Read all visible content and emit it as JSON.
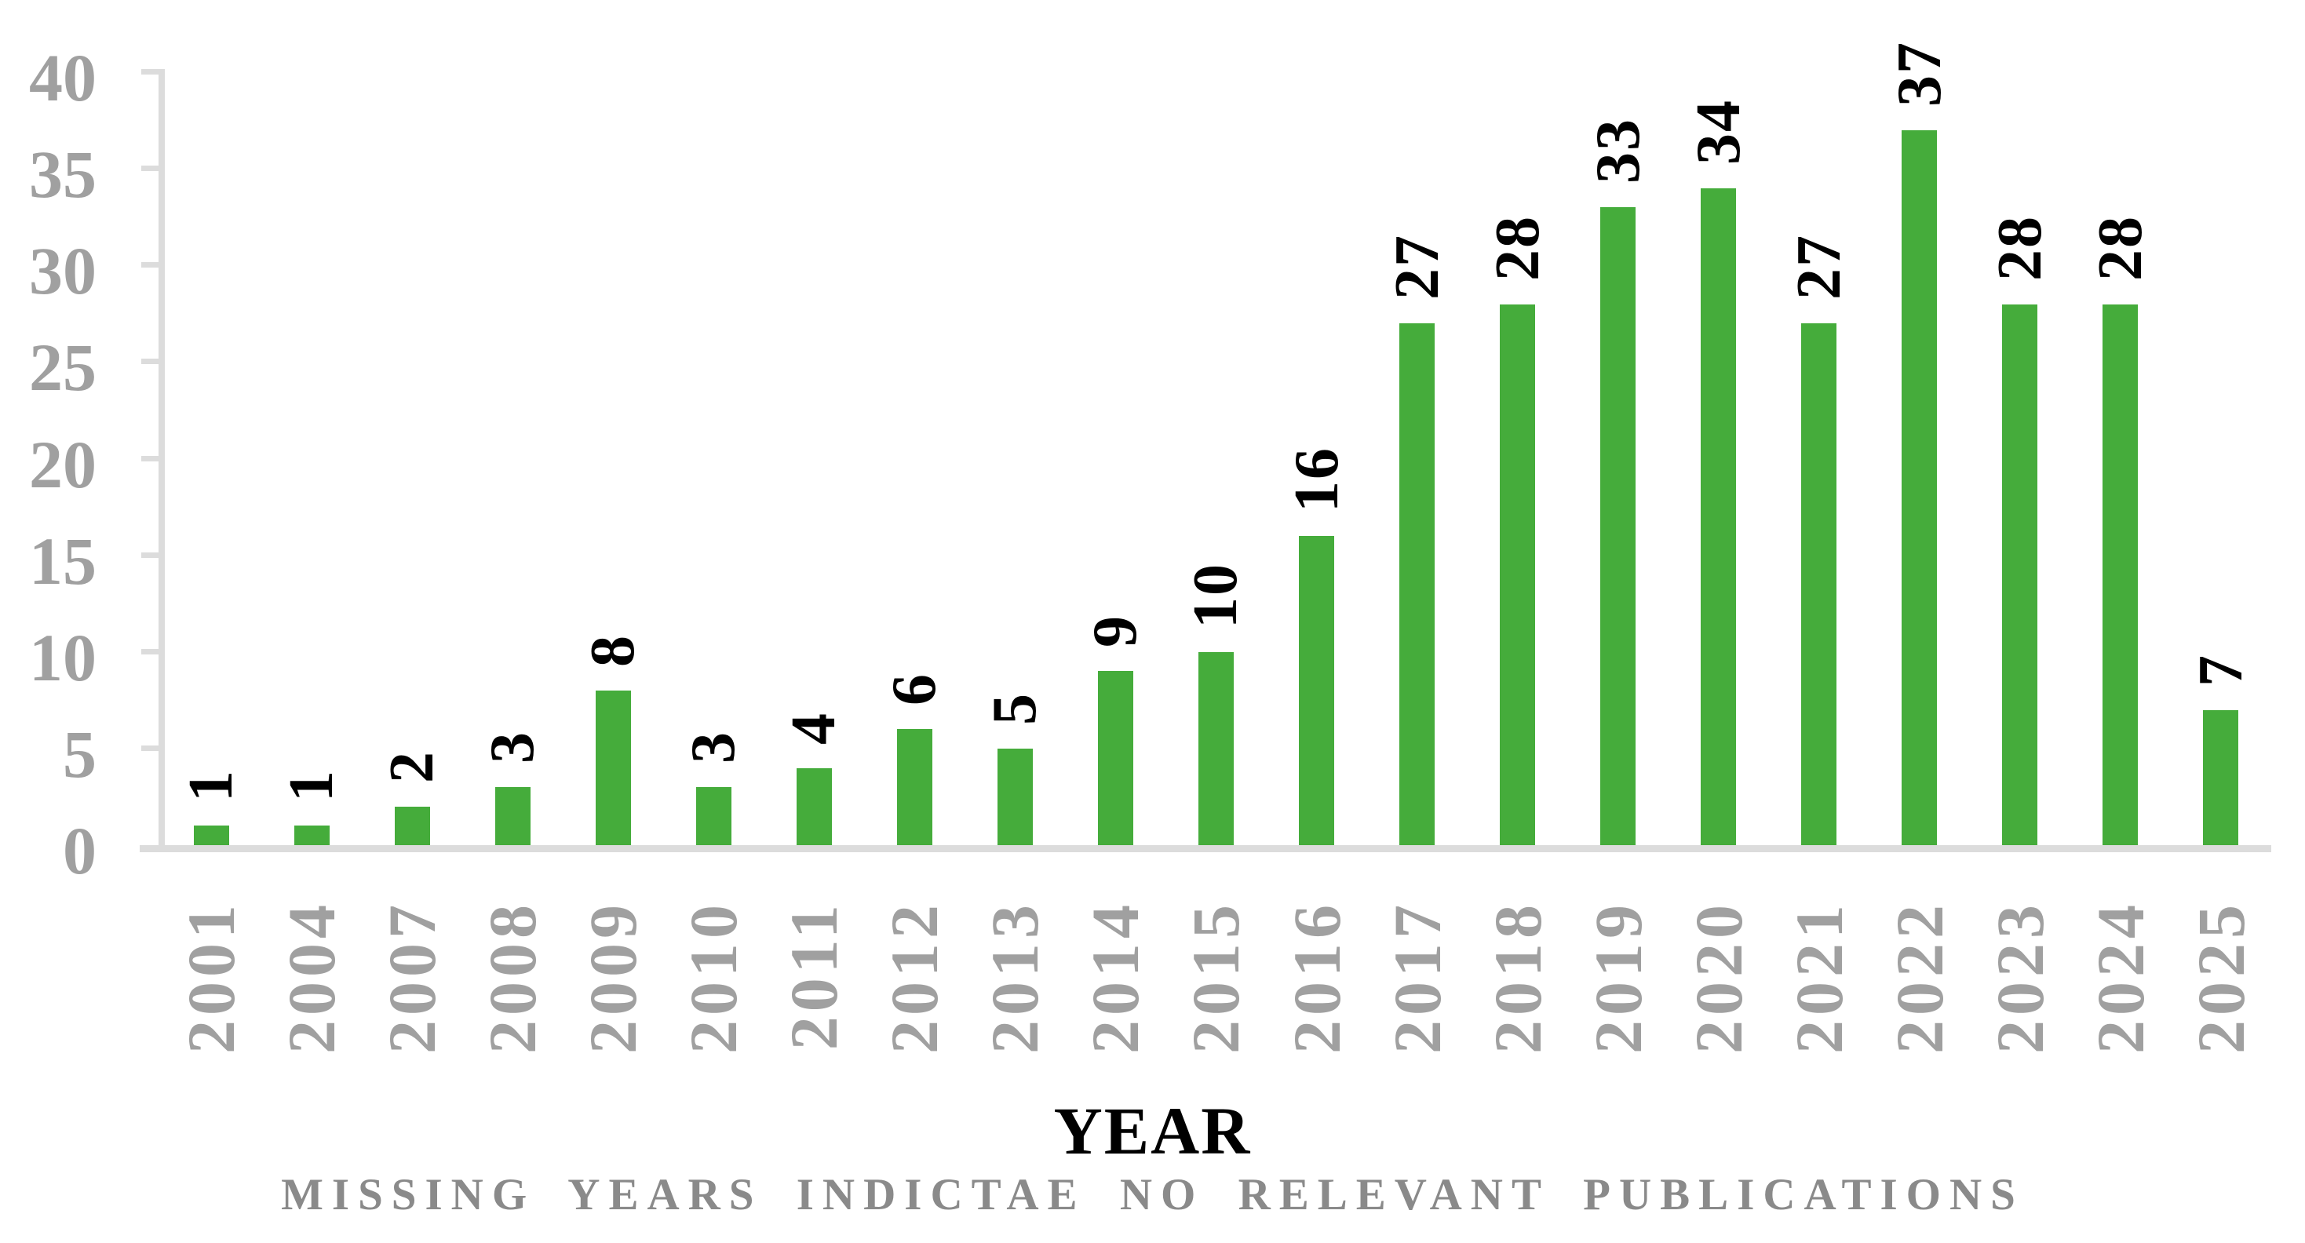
{
  "chart_data": {
    "type": "bar",
    "title": "",
    "xlabel": "YEAR",
    "ylabel": "",
    "footnote": "MISSING YEARS INDICTAE NO RELEVANT PUBLICATIONS",
    "categories": [
      "2001",
      "2004",
      "2007",
      "2008",
      "2009",
      "2010",
      "2011",
      "2012",
      "2013",
      "2014",
      "2015",
      "2016",
      "2017",
      "2018",
      "2019",
      "2020",
      "2021",
      "2022",
      "2023",
      "2024",
      "2025"
    ],
    "values": [
      1,
      1,
      2,
      3,
      8,
      3,
      4,
      6,
      5,
      9,
      10,
      16,
      27,
      28,
      33,
      34,
      27,
      37,
      28,
      28,
      7
    ],
    "ylim": [
      0,
      40
    ],
    "yticks": [
      0,
      5,
      10,
      15,
      20,
      25,
      30,
      35,
      40
    ],
    "grid": "off",
    "legend": "none",
    "data_labels": "rotated-vertical-above-bars",
    "tick_labels_orientation": "rotated-vertical",
    "colors": {
      "bar": "#45AC3B",
      "axis_line": "#DCDCDC",
      "tick_label": "#A0A0A0",
      "data_label": "#000000",
      "x_axis_title": "#000000",
      "footnote": "#8A8A8A"
    }
  }
}
